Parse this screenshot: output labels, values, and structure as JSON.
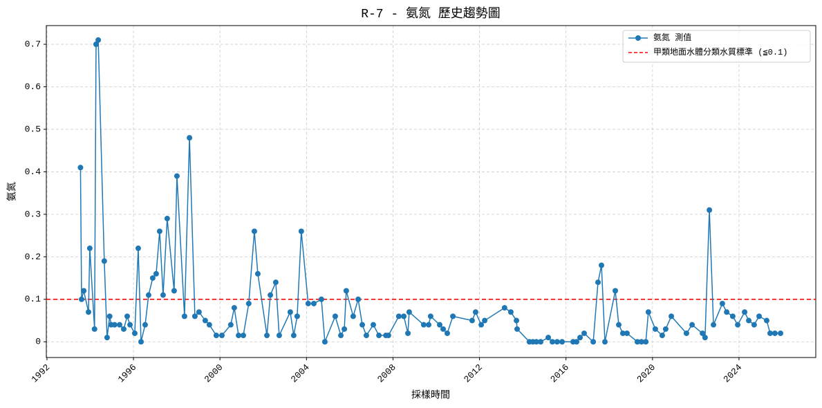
{
  "chart_data": {
    "type": "line",
    "title": "R-7 - 氨氮 歷史趨勢圖",
    "x_label": "採樣時間",
    "y_label": "氨氮",
    "x": [
      1993.55,
      1993.6,
      1993.7,
      1993.92,
      1993.98,
      1994.2,
      1994.27,
      1994.37,
      1994.65,
      1994.78,
      1994.9,
      1994.97,
      1995.13,
      1995.36,
      1995.55,
      1995.71,
      1995.84,
      1996.06,
      1996.22,
      1996.35,
      1996.54,
      1996.7,
      1996.89,
      1997.05,
      1997.21,
      1997.37,
      1997.56,
      1997.88,
      1998.01,
      1998.36,
      1998.59,
      1998.84,
      1999.03,
      1999.32,
      1999.51,
      1999.83,
      2000.09,
      2000.5,
      2000.66,
      2000.86,
      2001.08,
      2001.33,
      2001.59,
      2001.75,
      2002.17,
      2002.33,
      2002.58,
      2002.74,
      2003.25,
      2003.41,
      2003.57,
      2003.76,
      2004.08,
      2004.34,
      2004.69,
      2004.85,
      2005.33,
      2005.59,
      2005.75,
      2005.84,
      2006.16,
      2006.39,
      2006.58,
      2006.77,
      2007.09,
      2007.35,
      2007.67,
      2007.79,
      2008.27,
      2008.5,
      2008.69,
      2008.75,
      2009.42,
      2009.65,
      2009.74,
      2010.16,
      2010.32,
      2010.51,
      2010.77,
      2011.66,
      2011.82,
      2012.08,
      2012.24,
      2013.16,
      2013.45,
      2013.71,
      2013.74,
      2014.31,
      2014.47,
      2014.63,
      2014.83,
      2015.18,
      2015.37,
      2015.59,
      2015.82,
      2016.33,
      2016.49,
      2016.65,
      2016.84,
      2017.26,
      2017.48,
      2017.64,
      2017.8,
      2018.28,
      2018.44,
      2018.63,
      2018.82,
      2019.3,
      2019.49,
      2019.69,
      2019.81,
      2020.13,
      2020.45,
      2020.61,
      2020.87,
      2021.57,
      2021.83,
      2022.31,
      2022.43,
      2022.63,
      2022.82,
      2023.23,
      2023.43,
      2023.71,
      2023.94,
      2024.26,
      2024.45,
      2024.7,
      2024.93,
      2025.28,
      2025.44,
      2025.66,
      2025.92
    ],
    "series": [
      {
        "name": "氨氮 測值",
        "color": "#1f77b4",
        "values": [
          0.41,
          0.1,
          0.12,
          0.07,
          0.22,
          0.03,
          0.7,
          0.71,
          0.19,
          0.01,
          0.06,
          0.04,
          0.04,
          0.04,
          0.03,
          0.06,
          0.04,
          0.02,
          0.22,
          0,
          0.04,
          0.11,
          0.15,
          0.16,
          0.26,
          0.11,
          0.29,
          0.12,
          0.39,
          0.06,
          0.48,
          0.06,
          0.07,
          0.05,
          0.04,
          0.015,
          0.015,
          0.04,
          0.08,
          0.015,
          0.015,
          0.09,
          0.26,
          0.16,
          0.015,
          0.11,
          0.14,
          0.015,
          0.07,
          0.015,
          0.06,
          0.26,
          0.09,
          0.09,
          0.1,
          0,
          0.06,
          0.015,
          0.03,
          0.12,
          0.06,
          0.1,
          0.04,
          0.015,
          0.04,
          0.015,
          0.015,
          0.015,
          0.06,
          0.06,
          0.02,
          0.07,
          0.04,
          0.04,
          0.06,
          0.04,
          0.03,
          0.02,
          0.06,
          0.05,
          0.07,
          0.04,
          0.05,
          0.08,
          0.07,
          0.05,
          0.03,
          0,
          0,
          0,
          0,
          0.01,
          0,
          0,
          0,
          0,
          0,
          0.01,
          0.02,
          0,
          0.14,
          0.18,
          0,
          0.12,
          0.04,
          0.02,
          0.02,
          0,
          0,
          0,
          0.07,
          0.03,
          0.015,
          0.03,
          0.06,
          0.02,
          0.04,
          0.02,
          0.01,
          0.31,
          0.04,
          0.09,
          0.07,
          0.06,
          0.04,
          0.07,
          0.05,
          0.04,
          0.06,
          0.05,
          0.02,
          0.02,
          0.02
        ]
      }
    ],
    "hline": {
      "name": "甲類地面水體分類水質標準 (≦0.1)",
      "value": 0.1,
      "color": "#ff0000"
    },
    "xlim": [
      1991.97,
      2027.55
    ],
    "xticks": [
      1992,
      1996,
      2000,
      2004,
      2008,
      2012,
      2016,
      2020,
      2024
    ],
    "ylim": [
      -0.037,
      0.744
    ],
    "yticks": [
      0,
      0.1,
      0.2,
      0.3,
      0.4,
      0.5,
      0.6,
      0.7
    ],
    "grid": true,
    "legend": "upper right"
  }
}
